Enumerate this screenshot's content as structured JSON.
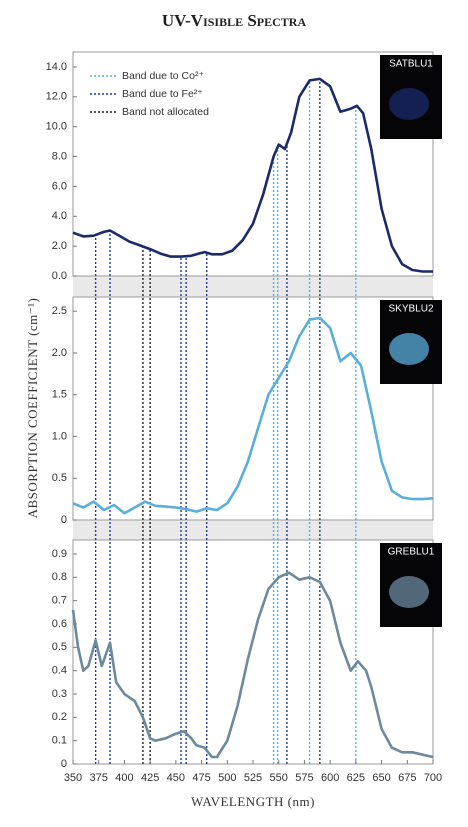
{
  "title": "UV-Visible Spectra",
  "y_label": "ABSORPTION COEFFICIENT (cm⁻¹)",
  "xaxis": {
    "label": "WAVELENGTH (nm)",
    "xlim": [
      350,
      700
    ],
    "xticks": [
      350,
      375,
      400,
      425,
      450,
      475,
      500,
      525,
      550,
      575,
      600,
      625,
      650,
      675,
      700
    ]
  },
  "bands": [
    {
      "name": "Band due to Co²⁺",
      "color": "#4fb3e0",
      "values": [
        545,
        549,
        580,
        625
      ]
    },
    {
      "name": "Band due to Fe²⁺",
      "color": "#1f3a8f",
      "values": [
        372,
        386,
        455,
        460,
        480,
        558,
        590
      ]
    },
    {
      "name": "Band not allocated",
      "color": "#222222",
      "values": [
        418,
        425
      ]
    }
  ],
  "chart_data": [
    {
      "type": "line",
      "label": "SATBLU1",
      "color": "#1b2a6b",
      "x": [
        350,
        360,
        370,
        380,
        386,
        395,
        405,
        415,
        425,
        435,
        445,
        455,
        465,
        472,
        478,
        485,
        495,
        505,
        515,
        525,
        535,
        545,
        550,
        556,
        562,
        570,
        580,
        590,
        600,
        610,
        620,
        626,
        632,
        640,
        650,
        660,
        670,
        680,
        690,
        700
      ],
      "values": [
        2.9,
        2.65,
        2.7,
        2.95,
        3.05,
        2.7,
        2.3,
        2.05,
        1.8,
        1.5,
        1.3,
        1.3,
        1.35,
        1.5,
        1.6,
        1.45,
        1.45,
        1.7,
        2.4,
        3.5,
        5.5,
        8.0,
        8.8,
        8.5,
        9.6,
        12.0,
        13.1,
        13.2,
        12.7,
        11.0,
        11.2,
        11.4,
        10.9,
        8.5,
        4.5,
        2.0,
        0.8,
        0.4,
        0.3,
        0.3
      ],
      "ylim": [
        0,
        15
      ],
      "yticks": [
        {
          "value": 0,
          "label": "0.0"
        },
        {
          "value": 2,
          "label": "2.0"
        },
        {
          "value": 4,
          "label": "4.0"
        },
        {
          "value": 6,
          "label": "6.0"
        },
        {
          "value": 8,
          "label": "8.0"
        },
        {
          "value": 10,
          "label": "10.0"
        },
        {
          "value": 12,
          "label": "12.0"
        },
        {
          "value": 14,
          "label": "14.0"
        }
      ]
    },
    {
      "type": "line",
      "label": "SKYBLU2",
      "color": "#5aaedb",
      "x": [
        350,
        360,
        370,
        380,
        390,
        400,
        410,
        420,
        430,
        440,
        450,
        460,
        470,
        480,
        490,
        500,
        510,
        520,
        530,
        540,
        550,
        560,
        570,
        580,
        590,
        600,
        610,
        620,
        630,
        640,
        650,
        660,
        670,
        680,
        690,
        700
      ],
      "values": [
        0.2,
        0.15,
        0.22,
        0.12,
        0.18,
        0.08,
        0.15,
        0.22,
        0.17,
        0.16,
        0.15,
        0.13,
        0.1,
        0.14,
        0.12,
        0.2,
        0.4,
        0.7,
        1.1,
        1.5,
        1.7,
        1.9,
        2.2,
        2.4,
        2.42,
        2.3,
        1.9,
        2.0,
        1.85,
        1.3,
        0.7,
        0.35,
        0.27,
        0.25,
        0.25,
        0.26
      ],
      "ylim": [
        0,
        2.67
      ],
      "yticks": [
        0,
        0.5,
        {
          "value": 1,
          "label": "1.0"
        },
        {
          "value": 1.5,
          "label": "1.5"
        },
        {
          "value": 2,
          "label": "2.0"
        },
        {
          "value": 2.5,
          "label": "2.5"
        }
      ]
    },
    {
      "type": "line",
      "label": "GREBLU1",
      "color": "#6c8a9e",
      "x": [
        350,
        355,
        360,
        365,
        372,
        378,
        386,
        392,
        400,
        410,
        418,
        425,
        430,
        440,
        450,
        458,
        465,
        470,
        478,
        485,
        490,
        500,
        510,
        520,
        530,
        540,
        550,
        560,
        570,
        580,
        590,
        600,
        610,
        620,
        627,
        635,
        640,
        650,
        660,
        670,
        680,
        690,
        700
      ],
      "values": [
        0.66,
        0.5,
        0.4,
        0.42,
        0.53,
        0.42,
        0.52,
        0.35,
        0.3,
        0.27,
        0.2,
        0.11,
        0.1,
        0.11,
        0.13,
        0.14,
        0.11,
        0.08,
        0.07,
        0.03,
        0.03,
        0.1,
        0.25,
        0.45,
        0.62,
        0.75,
        0.8,
        0.82,
        0.79,
        0.8,
        0.78,
        0.7,
        0.52,
        0.4,
        0.44,
        0.4,
        0.33,
        0.15,
        0.07,
        0.05,
        0.05,
        0.04,
        0.03
      ],
      "ylim": [
        0,
        0.96
      ],
      "yticks": [
        0,
        0.1,
        0.2,
        0.3,
        0.4,
        0.5,
        0.6,
        0.7,
        0.8,
        0.9
      ]
    }
  ]
}
